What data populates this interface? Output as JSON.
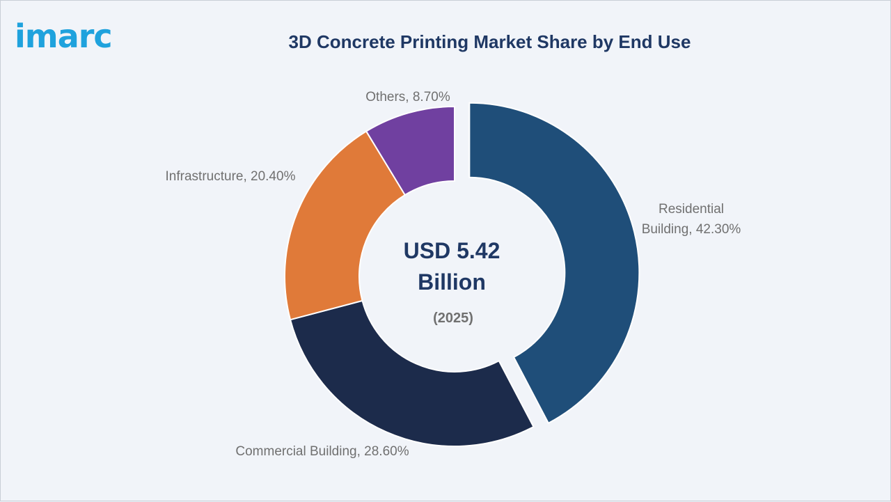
{
  "logo": {
    "text": "imarc",
    "color": "#1fa2dd"
  },
  "chart_data": {
    "type": "pie",
    "title": "3D Concrete Printing Market Share by End Use",
    "center_label": {
      "value": "USD 5.42",
      "unit": "Billion",
      "year": "(2025)"
    },
    "slices": [
      {
        "label": "Residential Building",
        "value": 42.3,
        "display": "42.30%",
        "color": "#1f4e79",
        "exploded": true
      },
      {
        "label": "Commercial Building",
        "value": 28.6,
        "display": "28.60%",
        "color": "#1c2b4b",
        "exploded": false
      },
      {
        "label": "Infrastructure",
        "value": 20.4,
        "display": "20.40%",
        "color": "#e07a39",
        "exploded": false
      },
      {
        "label": "Others",
        "value": 8.7,
        "display": "8.70%",
        "color": "#7040a0",
        "exploded": false
      }
    ],
    "legend": "none"
  },
  "colors": {
    "title": "#1f3864",
    "labels": "#707070",
    "background": "#f1f4f9"
  }
}
